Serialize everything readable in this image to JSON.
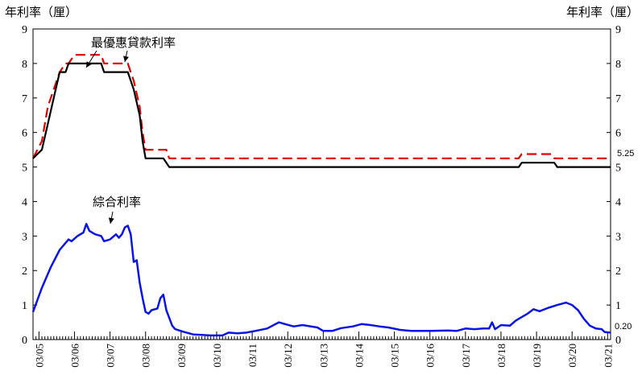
{
  "chart_data": {
    "type": "line",
    "y_unit_left": "年利率（厘）",
    "y_unit_right": "年利率（厘）",
    "ylim": [
      0,
      9
    ],
    "y_ticks": [
      "0",
      "1",
      "2",
      "3",
      "4",
      "5",
      "6",
      "7",
      "8",
      "9"
    ],
    "x_start": "2005-01",
    "x_end": "2021-04",
    "x_tick_labels": [
      "03/05",
      "03/06",
      "03/07",
      "03/08",
      "03/09",
      "03/10",
      "03/11",
      "03/12",
      "03/13",
      "03/14",
      "03/15",
      "03/16",
      "03/17",
      "03/18",
      "03/19",
      "03/20",
      "03/21"
    ],
    "grid": false,
    "annotations": [
      {
        "text": "最優惠貸款利率",
        "series": "prime_black"
      },
      {
        "text": "綜合利率",
        "series": "composite"
      }
    ],
    "end_labels": [
      "5.25",
      "0.20"
    ],
    "series": [
      {
        "key": "prime_red",
        "color": "#e00000",
        "style": "dashed",
        "points": [
          [
            "2005-01",
            5.25
          ],
          [
            "2005-04",
            5.75
          ],
          [
            "2005-06",
            6.75
          ],
          [
            "2005-08",
            7.25
          ],
          [
            "2005-10",
            7.75
          ],
          [
            "2005-12",
            8.0
          ],
          [
            "2006-01",
            8.0
          ],
          [
            "2006-03",
            8.25
          ],
          [
            "2006-12",
            8.25
          ],
          [
            "2007-01",
            8.0
          ],
          [
            "2007-09",
            8.0
          ],
          [
            "2007-10",
            7.75
          ],
          [
            "2007-11",
            7.5
          ],
          [
            "2008-01",
            6.75
          ],
          [
            "2008-02",
            6.0
          ],
          [
            "2008-03",
            5.5
          ],
          [
            "2008-10",
            5.5
          ],
          [
            "2008-11",
            5.25
          ],
          [
            "2018-09",
            5.25
          ],
          [
            "2018-10",
            5.375
          ],
          [
            "2019-08",
            5.375
          ],
          [
            "2019-09",
            5.25
          ],
          [
            "2021-04",
            5.25
          ]
        ]
      },
      {
        "key": "prime_black",
        "color": "#000000",
        "style": "solid",
        "points": [
          [
            "2005-01",
            5.25
          ],
          [
            "2005-04",
            5.5
          ],
          [
            "2005-06",
            6.25
          ],
          [
            "2005-08",
            7.0
          ],
          [
            "2005-10",
            7.75
          ],
          [
            "2005-12",
            7.75
          ],
          [
            "2006-01",
            8.0
          ],
          [
            "2006-12",
            8.0
          ],
          [
            "2007-01",
            7.75
          ],
          [
            "2007-09",
            7.75
          ],
          [
            "2007-10",
            7.5
          ],
          [
            "2007-11",
            7.25
          ],
          [
            "2008-01",
            6.5
          ],
          [
            "2008-02",
            5.75
          ],
          [
            "2008-03",
            5.25
          ],
          [
            "2008-09",
            5.25
          ],
          [
            "2008-11",
            5.0
          ],
          [
            "2018-09",
            5.0
          ],
          [
            "2018-10",
            5.125
          ],
          [
            "2019-09",
            5.125
          ],
          [
            "2019-10",
            5.0
          ],
          [
            "2021-04",
            5.0
          ]
        ]
      },
      {
        "key": "composite",
        "color": "#0a14e6",
        "style": "solid",
        "points": [
          [
            "2005-01",
            0.8
          ],
          [
            "2005-04",
            1.5
          ],
          [
            "2005-07",
            2.1
          ],
          [
            "2005-10",
            2.6
          ],
          [
            "2006-01",
            2.9
          ],
          [
            "2006-02",
            2.85
          ],
          [
            "2006-04",
            3.0
          ],
          [
            "2006-06",
            3.1
          ],
          [
            "2006-07",
            3.35
          ],
          [
            "2006-08",
            3.15
          ],
          [
            "2006-10",
            3.05
          ],
          [
            "2006-12",
            3.0
          ],
          [
            "2007-01",
            2.85
          ],
          [
            "2007-03",
            2.9
          ],
          [
            "2007-05",
            3.05
          ],
          [
            "2007-06",
            2.95
          ],
          [
            "2007-07",
            3.05
          ],
          [
            "2007-08",
            3.25
          ],
          [
            "2007-09",
            3.3
          ],
          [
            "2007-10",
            3.05
          ],
          [
            "2007-11",
            2.25
          ],
          [
            "2007-12",
            2.3
          ],
          [
            "2008-01",
            1.65
          ],
          [
            "2008-02",
            1.2
          ],
          [
            "2008-03",
            0.8
          ],
          [
            "2008-04",
            0.75
          ],
          [
            "2008-05",
            0.85
          ],
          [
            "2008-07",
            0.9
          ],
          [
            "2008-08",
            1.2
          ],
          [
            "2008-09",
            1.3
          ],
          [
            "2008-10",
            0.85
          ],
          [
            "2008-12",
            0.4
          ],
          [
            "2009-01",
            0.3
          ],
          [
            "2009-04",
            0.22
          ],
          [
            "2009-07",
            0.15
          ],
          [
            "2010-01",
            0.12
          ],
          [
            "2010-05",
            0.12
          ],
          [
            "2010-07",
            0.2
          ],
          [
            "2010-10",
            0.18
          ],
          [
            "2011-01",
            0.2
          ],
          [
            "2011-04",
            0.25
          ],
          [
            "2011-08",
            0.32
          ],
          [
            "2011-12",
            0.5
          ],
          [
            "2012-02",
            0.45
          ],
          [
            "2012-05",
            0.38
          ],
          [
            "2012-08",
            0.42
          ],
          [
            "2013-01",
            0.35
          ],
          [
            "2013-03",
            0.25
          ],
          [
            "2013-06",
            0.25
          ],
          [
            "2013-09",
            0.33
          ],
          [
            "2014-01",
            0.38
          ],
          [
            "2014-04",
            0.45
          ],
          [
            "2014-07",
            0.42
          ],
          [
            "2014-10",
            0.38
          ],
          [
            "2015-01",
            0.35
          ],
          [
            "2015-05",
            0.28
          ],
          [
            "2015-09",
            0.25
          ],
          [
            "2016-03",
            0.25
          ],
          [
            "2016-09",
            0.26
          ],
          [
            "2016-12",
            0.25
          ],
          [
            "2017-03",
            0.32
          ],
          [
            "2017-06",
            0.3
          ],
          [
            "2017-09",
            0.32
          ],
          [
            "2017-11",
            0.32
          ],
          [
            "2017-12",
            0.5
          ],
          [
            "2018-01",
            0.3
          ],
          [
            "2018-03",
            0.42
          ],
          [
            "2018-06",
            0.4
          ],
          [
            "2018-08",
            0.55
          ],
          [
            "2018-10",
            0.65
          ],
          [
            "2018-12",
            0.75
          ],
          [
            "2019-02",
            0.88
          ],
          [
            "2019-04",
            0.82
          ],
          [
            "2019-07",
            0.92
          ],
          [
            "2019-10",
            1.0
          ],
          [
            "2020-01",
            1.07
          ],
          [
            "2020-03",
            1.0
          ],
          [
            "2020-05",
            0.85
          ],
          [
            "2020-07",
            0.6
          ],
          [
            "2020-09",
            0.4
          ],
          [
            "2020-11",
            0.32
          ],
          [
            "2021-01",
            0.3
          ],
          [
            "2021-02",
            0.22
          ],
          [
            "2021-04",
            0.2
          ]
        ]
      }
    ]
  }
}
